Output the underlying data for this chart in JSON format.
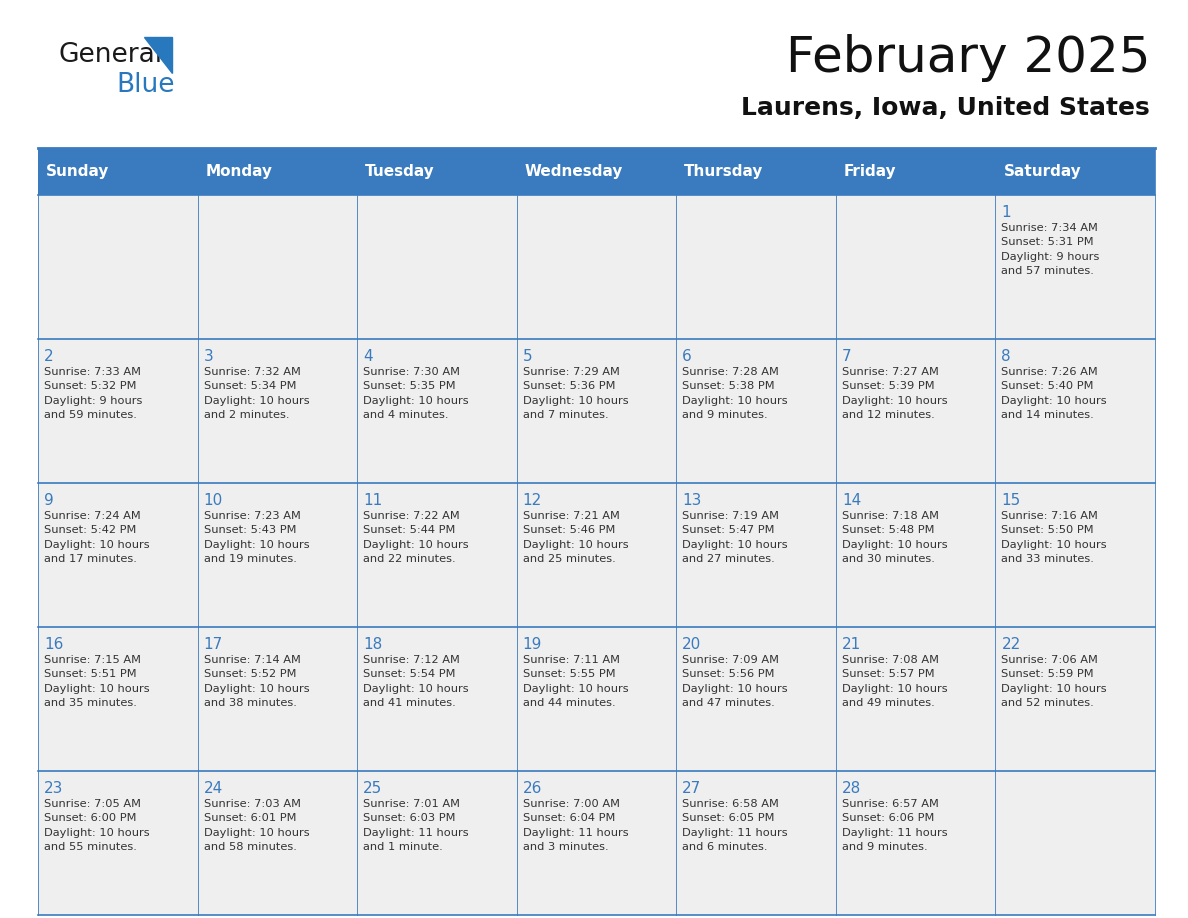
{
  "title": "February 2025",
  "subtitle": "Laurens, Iowa, United States",
  "header_color": "#3a7bbf",
  "header_text_color": "#ffffff",
  "background_color": "#ffffff",
  "cell_bg_color": "#efefef",
  "day_number_color": "#3a7bbf",
  "cell_text_color": "#333333",
  "grid_line_color": "#3a7bbf",
  "days_of_week": [
    "Sunday",
    "Monday",
    "Tuesday",
    "Wednesday",
    "Thursday",
    "Friday",
    "Saturday"
  ],
  "logo_color": "#2878be",
  "weeks": [
    [
      {
        "day": "",
        "info": ""
      },
      {
        "day": "",
        "info": ""
      },
      {
        "day": "",
        "info": ""
      },
      {
        "day": "",
        "info": ""
      },
      {
        "day": "",
        "info": ""
      },
      {
        "day": "",
        "info": ""
      },
      {
        "day": "1",
        "info": "Sunrise: 7:34 AM\nSunset: 5:31 PM\nDaylight: 9 hours\nand 57 minutes."
      }
    ],
    [
      {
        "day": "2",
        "info": "Sunrise: 7:33 AM\nSunset: 5:32 PM\nDaylight: 9 hours\nand 59 minutes."
      },
      {
        "day": "3",
        "info": "Sunrise: 7:32 AM\nSunset: 5:34 PM\nDaylight: 10 hours\nand 2 minutes."
      },
      {
        "day": "4",
        "info": "Sunrise: 7:30 AM\nSunset: 5:35 PM\nDaylight: 10 hours\nand 4 minutes."
      },
      {
        "day": "5",
        "info": "Sunrise: 7:29 AM\nSunset: 5:36 PM\nDaylight: 10 hours\nand 7 minutes."
      },
      {
        "day": "6",
        "info": "Sunrise: 7:28 AM\nSunset: 5:38 PM\nDaylight: 10 hours\nand 9 minutes."
      },
      {
        "day": "7",
        "info": "Sunrise: 7:27 AM\nSunset: 5:39 PM\nDaylight: 10 hours\nand 12 minutes."
      },
      {
        "day": "8",
        "info": "Sunrise: 7:26 AM\nSunset: 5:40 PM\nDaylight: 10 hours\nand 14 minutes."
      }
    ],
    [
      {
        "day": "9",
        "info": "Sunrise: 7:24 AM\nSunset: 5:42 PM\nDaylight: 10 hours\nand 17 minutes."
      },
      {
        "day": "10",
        "info": "Sunrise: 7:23 AM\nSunset: 5:43 PM\nDaylight: 10 hours\nand 19 minutes."
      },
      {
        "day": "11",
        "info": "Sunrise: 7:22 AM\nSunset: 5:44 PM\nDaylight: 10 hours\nand 22 minutes."
      },
      {
        "day": "12",
        "info": "Sunrise: 7:21 AM\nSunset: 5:46 PM\nDaylight: 10 hours\nand 25 minutes."
      },
      {
        "day": "13",
        "info": "Sunrise: 7:19 AM\nSunset: 5:47 PM\nDaylight: 10 hours\nand 27 minutes."
      },
      {
        "day": "14",
        "info": "Sunrise: 7:18 AM\nSunset: 5:48 PM\nDaylight: 10 hours\nand 30 minutes."
      },
      {
        "day": "15",
        "info": "Sunrise: 7:16 AM\nSunset: 5:50 PM\nDaylight: 10 hours\nand 33 minutes."
      }
    ],
    [
      {
        "day": "16",
        "info": "Sunrise: 7:15 AM\nSunset: 5:51 PM\nDaylight: 10 hours\nand 35 minutes."
      },
      {
        "day": "17",
        "info": "Sunrise: 7:14 AM\nSunset: 5:52 PM\nDaylight: 10 hours\nand 38 minutes."
      },
      {
        "day": "18",
        "info": "Sunrise: 7:12 AM\nSunset: 5:54 PM\nDaylight: 10 hours\nand 41 minutes."
      },
      {
        "day": "19",
        "info": "Sunrise: 7:11 AM\nSunset: 5:55 PM\nDaylight: 10 hours\nand 44 minutes."
      },
      {
        "day": "20",
        "info": "Sunrise: 7:09 AM\nSunset: 5:56 PM\nDaylight: 10 hours\nand 47 minutes."
      },
      {
        "day": "21",
        "info": "Sunrise: 7:08 AM\nSunset: 5:57 PM\nDaylight: 10 hours\nand 49 minutes."
      },
      {
        "day": "22",
        "info": "Sunrise: 7:06 AM\nSunset: 5:59 PM\nDaylight: 10 hours\nand 52 minutes."
      }
    ],
    [
      {
        "day": "23",
        "info": "Sunrise: 7:05 AM\nSunset: 6:00 PM\nDaylight: 10 hours\nand 55 minutes."
      },
      {
        "day": "24",
        "info": "Sunrise: 7:03 AM\nSunset: 6:01 PM\nDaylight: 10 hours\nand 58 minutes."
      },
      {
        "day": "25",
        "info": "Sunrise: 7:01 AM\nSunset: 6:03 PM\nDaylight: 11 hours\nand 1 minute."
      },
      {
        "day": "26",
        "info": "Sunrise: 7:00 AM\nSunset: 6:04 PM\nDaylight: 11 hours\nand 3 minutes."
      },
      {
        "day": "27",
        "info": "Sunrise: 6:58 AM\nSunset: 6:05 PM\nDaylight: 11 hours\nand 6 minutes."
      },
      {
        "day": "28",
        "info": "Sunrise: 6:57 AM\nSunset: 6:06 PM\nDaylight: 11 hours\nand 9 minutes."
      },
      {
        "day": "",
        "info": ""
      }
    ]
  ],
  "fig_width": 11.88,
  "fig_height": 9.18,
  "dpi": 100
}
